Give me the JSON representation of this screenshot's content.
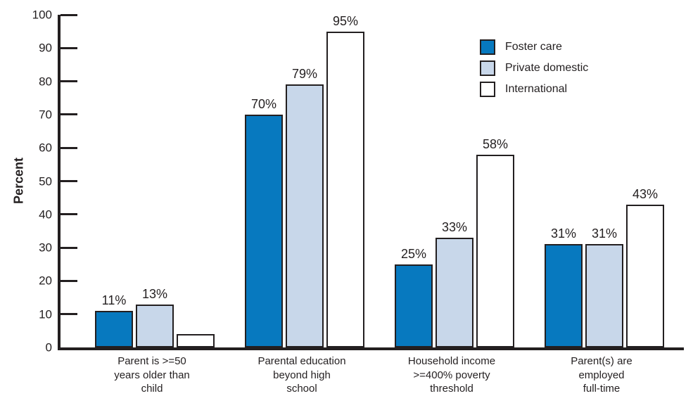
{
  "chart_data": {
    "type": "bar",
    "title": "",
    "xlabel": "",
    "ylabel": "Percent",
    "ylim": [
      0,
      100
    ],
    "yticks": [
      0,
      10,
      20,
      30,
      40,
      50,
      60,
      70,
      80,
      90,
      100
    ],
    "grid": false,
    "legend_position": "top-right",
    "ink_color": "#231F20",
    "categories": [
      "Parent is >=50\nyears older than\nchild",
      "Parental education\nbeyond high\nschool",
      "Household income\n>=400% poverty\nthreshold",
      "Parent(s) are\nemployed\nfull-time"
    ],
    "series": [
      {
        "name": "Foster care",
        "key": "foster-care",
        "color": "#0779BF",
        "values": [
          11,
          70,
          25,
          31
        ],
        "labels": [
          "11%",
          "70%",
          "25%",
          "31%"
        ]
      },
      {
        "name": "Private domestic",
        "key": "private-domestic",
        "color": "#C8D7EA",
        "values": [
          13,
          79,
          33,
          31
        ],
        "labels": [
          "13%",
          "79%",
          "33%",
          "31%"
        ]
      },
      {
        "name": "International",
        "key": "international",
        "color": "#FFFFFF",
        "values": [
          4,
          95,
          58,
          43
        ],
        "labels": [
          "",
          "95%",
          "58%",
          "43%"
        ]
      }
    ]
  }
}
